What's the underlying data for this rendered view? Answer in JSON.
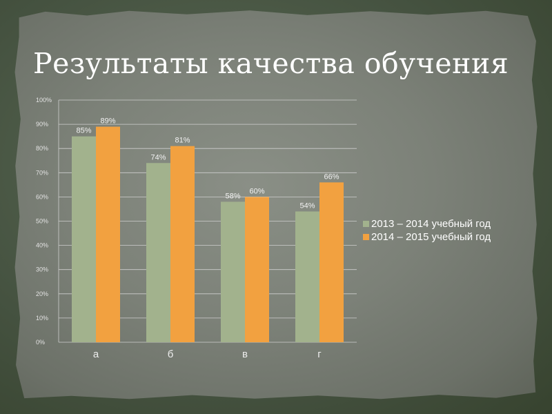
{
  "slide": {
    "title": "Результаты качества обучения"
  },
  "colors": {
    "series1": "#a2b28d",
    "series2": "#f2a140",
    "grid": "#cfcfcf"
  },
  "chart_data": {
    "type": "bar",
    "title": "",
    "categories": [
      "а",
      "б",
      "в",
      "г"
    ],
    "series": [
      {
        "name": "2013 – 2014 учебный год",
        "values": [
          85,
          74,
          58,
          54
        ]
      },
      {
        "name": "2014 – 2015 учебный год",
        "values": [
          89,
          81,
          60,
          66
        ]
      }
    ],
    "data_labels": [
      [
        "85%",
        "74%",
        "58%",
        "54%"
      ],
      [
        "89%",
        "81%",
        "60%",
        "66%"
      ]
    ],
    "ylim": [
      0,
      100
    ],
    "yticks": [
      "0%",
      "10%",
      "20%",
      "30%",
      "40%",
      "50%",
      "60%",
      "70%",
      "80%",
      "90%",
      "100%"
    ],
    "grid": true,
    "legend_position": "right"
  }
}
